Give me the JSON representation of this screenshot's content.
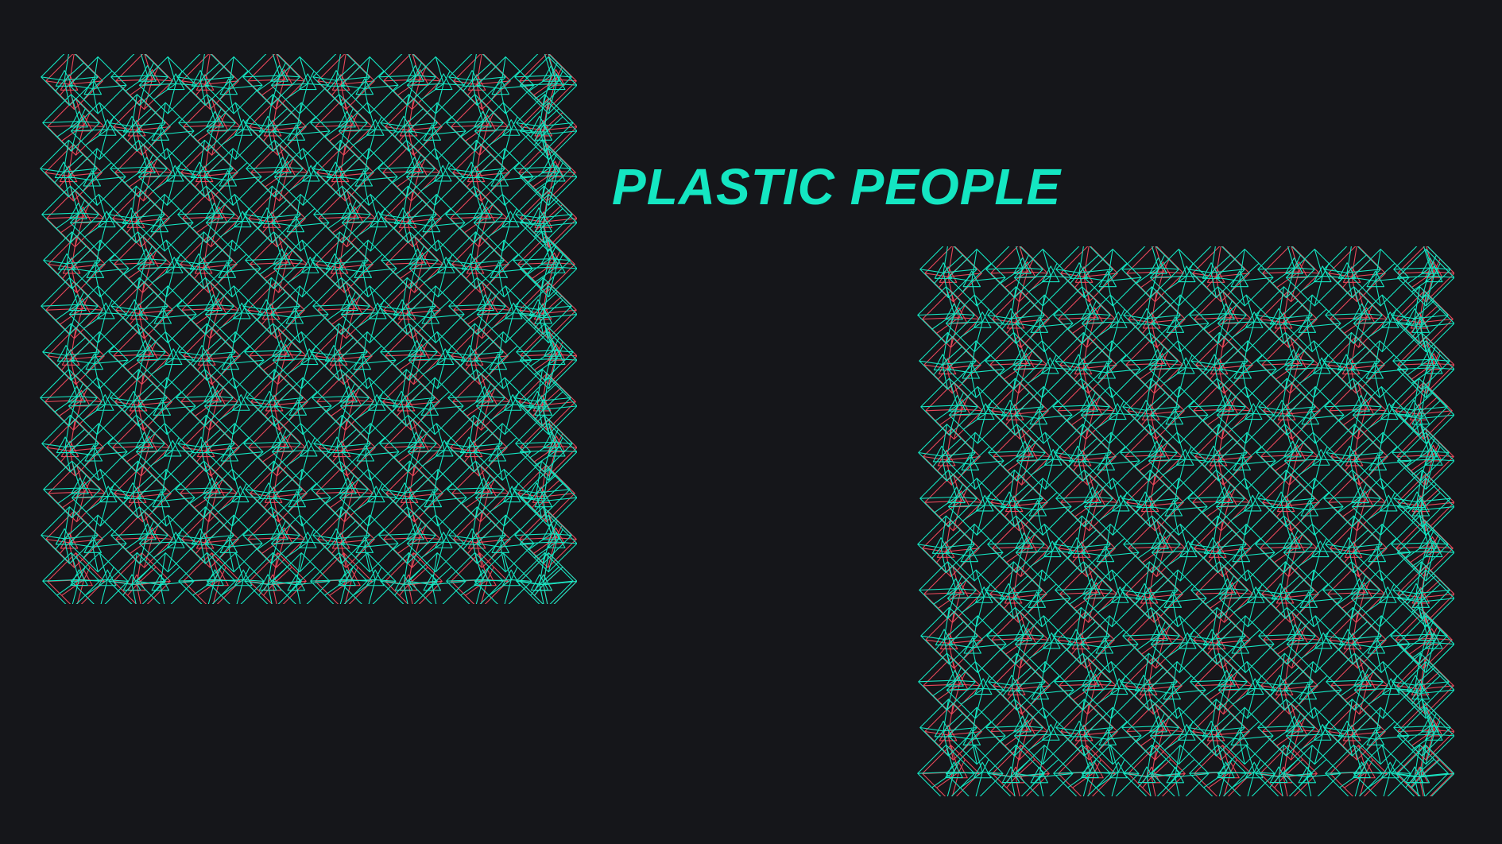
{
  "title": "PLASTIC PEOPLE",
  "colors": {
    "background": "#15161a",
    "accent_teal": "#14e6c2",
    "accent_red": "#e8485a"
  },
  "patterns": [
    {
      "name": "left-wireframe-grid",
      "columns": 8,
      "rows": 12
    },
    {
      "name": "right-wireframe-grid",
      "columns": 8,
      "rows": 12
    }
  ]
}
